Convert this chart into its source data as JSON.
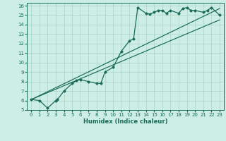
{
  "xlabel": "Humidex (Indice chaleur)",
  "ylabel": "",
  "bg_color": "#cceee4",
  "grid_color": "#aad4c8",
  "line_color": "#1a6b5a",
  "xlim": [
    -0.5,
    23.5
  ],
  "ylim": [
    5,
    16.3
  ],
  "xtick_vals": [
    0,
    1,
    2,
    3,
    4,
    5,
    6,
    7,
    8,
    9,
    10,
    11,
    12,
    13,
    14,
    15,
    16,
    17,
    18,
    19,
    20,
    21,
    22,
    23
  ],
  "ytick_vals": [
    5,
    6,
    7,
    8,
    9,
    10,
    11,
    12,
    13,
    14,
    15,
    16
  ],
  "data_line": [
    [
      0,
      6.1
    ],
    [
      1,
      6.0
    ],
    [
      2,
      5.2
    ],
    [
      3,
      6.0
    ],
    [
      3.2,
      6.1
    ],
    [
      4,
      7.0
    ],
    [
      5,
      7.8
    ],
    [
      5.5,
      8.1
    ],
    [
      6,
      8.2
    ],
    [
      7,
      8.0
    ],
    [
      8,
      7.8
    ],
    [
      8.5,
      7.8
    ],
    [
      9,
      9.0
    ],
    [
      10,
      9.5
    ],
    [
      11,
      11.2
    ],
    [
      12,
      12.3
    ],
    [
      12.5,
      12.5
    ],
    [
      13,
      15.8
    ],
    [
      14,
      15.2
    ],
    [
      14.5,
      15.1
    ],
    [
      15,
      15.3
    ],
    [
      15.5,
      15.5
    ],
    [
      16,
      15.5
    ],
    [
      16.5,
      15.2
    ],
    [
      17,
      15.5
    ],
    [
      18,
      15.2
    ],
    [
      18.5,
      15.7
    ],
    [
      19,
      15.8
    ],
    [
      19.5,
      15.5
    ],
    [
      20,
      15.5
    ],
    [
      21,
      15.3
    ],
    [
      21.5,
      15.5
    ],
    [
      22,
      15.8
    ],
    [
      23,
      15.0
    ]
  ],
  "line1_x": [
    0,
    23
  ],
  "line1_y": [
    6.1,
    15.7
  ],
  "line2_x": [
    0,
    23
  ],
  "line2_y": [
    6.1,
    14.5
  ],
  "xlabel_fontsize": 6,
  "tick_fontsize": 5,
  "tick_color": "#1a6b5a"
}
